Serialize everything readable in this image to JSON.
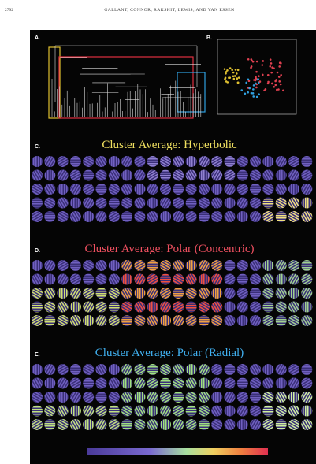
{
  "header": {
    "page_number": "2792",
    "running_head": "GALLANT, CONNOR, RAKSHIT, LEWIS, AND VAN ESSEN"
  },
  "figure": {
    "panels": [
      {
        "label": "A."
      },
      {
        "label": "B."
      },
      {
        "label": "C.",
        "title": "Cluster Average: Hyperbolic"
      },
      {
        "label": "D.",
        "title": "Cluster Average: Polar (Concentric)"
      },
      {
        "label": "E.",
        "title": "Cluster Average: Polar (Radial)"
      }
    ]
  }
}
